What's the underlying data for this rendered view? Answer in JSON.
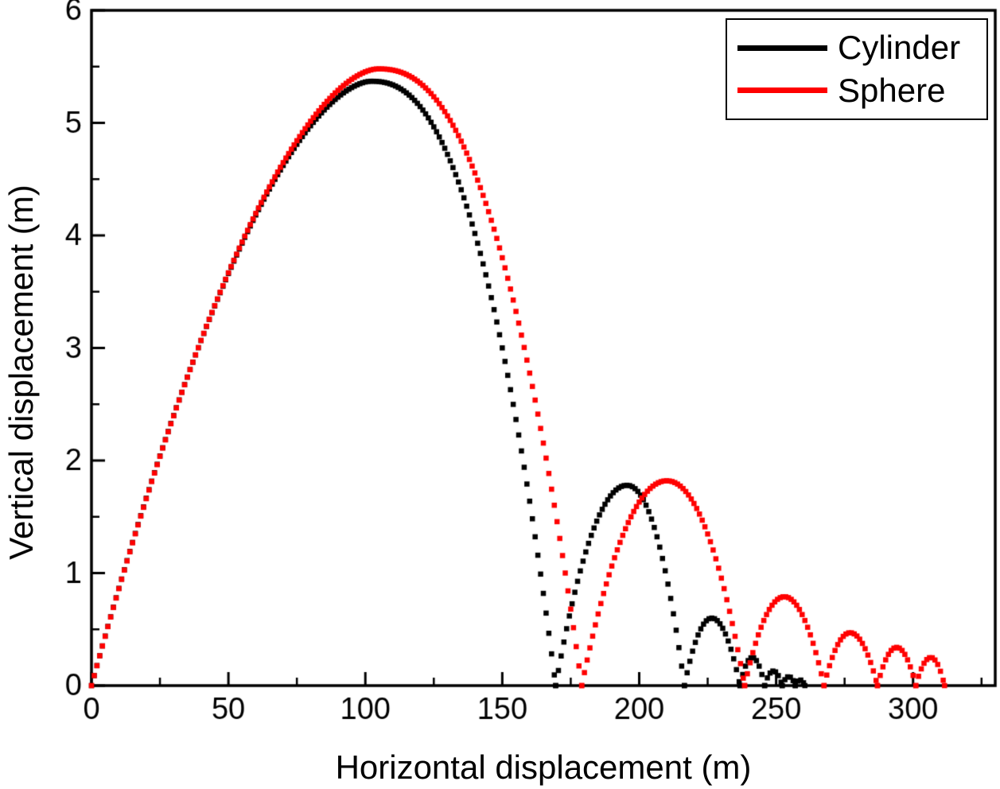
{
  "chart_data": {
    "type": "line",
    "title": "",
    "xlabel": "Horizontal displacement (m)",
    "ylabel": "Vertical displacement (m)",
    "xlim": [
      0,
      330
    ],
    "ylim": [
      0,
      6
    ],
    "x_major_ticks": [
      0,
      50,
      100,
      150,
      200,
      250,
      300
    ],
    "x_minor_step": 25,
    "y_major_ticks": [
      0,
      1,
      2,
      3,
      4,
      5,
      6
    ],
    "y_minor_step": 0.5,
    "grid": false,
    "legend_position": "top-right",
    "axis_color": "#000000",
    "background": "#ffffff",
    "tick_direction": "in",
    "marker": "square-dot",
    "marker_size_px": 6.5,
    "sample_step_m": 1,
    "series": [
      {
        "name": "Cylinder",
        "color": "#000000",
        "bounce_arcs": [
          {
            "x_start": 0,
            "x_peak": 102,
            "x_end": 169.5,
            "peak_height": 5.37,
            "rise_exp": 1.7,
            "fall_exp": 2.4
          },
          {
            "x_start": 169.5,
            "x_peak": 195.5,
            "x_end": 216.5,
            "peak_height": 1.78,
            "rise_exp": 2.0,
            "fall_exp": 2.1
          },
          {
            "x_start": 216.5,
            "x_peak": 226.5,
            "x_end": 236.8,
            "peak_height": 0.6,
            "rise_exp": 2.0,
            "fall_exp": 2.0
          },
          {
            "x_start": 236.8,
            "x_peak": 241.3,
            "x_end": 245.8,
            "peak_height": 0.25,
            "rise_exp": 2.0,
            "fall_exp": 2.0
          },
          {
            "x_start": 245.8,
            "x_peak": 249.0,
            "x_end": 252.2,
            "peak_height": 0.13,
            "rise_exp": 2.0,
            "fall_exp": 2.0
          },
          {
            "x_start": 252.2,
            "x_peak": 254.6,
            "x_end": 257.0,
            "peak_height": 0.08,
            "rise_exp": 2.0,
            "fall_exp": 2.0
          },
          {
            "x_start": 257.0,
            "x_peak": 258.8,
            "x_end": 260.5,
            "peak_height": 0.05,
            "rise_exp": 2.0,
            "fall_exp": 2.0
          }
        ]
      },
      {
        "name": "Sphere",
        "color": "#ff0000",
        "bounce_arcs": [
          {
            "x_start": 0,
            "x_peak": 104.5,
            "x_end": 179,
            "peak_height": 5.48,
            "rise_exp": 1.7,
            "fall_exp": 2.4
          },
          {
            "x_start": 179,
            "x_peak": 210,
            "x_end": 238.5,
            "peak_height": 1.82,
            "rise_exp": 2.0,
            "fall_exp": 2.1
          },
          {
            "x_start": 238.5,
            "x_peak": 253,
            "x_end": 267.5,
            "peak_height": 0.79,
            "rise_exp": 2.0,
            "fall_exp": 2.0
          },
          {
            "x_start": 267.5,
            "x_peak": 277,
            "x_end": 287,
            "peak_height": 0.47,
            "rise_exp": 2.0,
            "fall_exp": 2.0
          },
          {
            "x_start": 287,
            "x_peak": 294,
            "x_end": 301,
            "peak_height": 0.34,
            "rise_exp": 2.0,
            "fall_exp": 2.0
          },
          {
            "x_start": 301,
            "x_peak": 306.5,
            "x_end": 311.5,
            "peak_height": 0.25,
            "rise_exp": 2.0,
            "fall_exp": 2.0
          }
        ]
      }
    ]
  },
  "legend": {
    "items": [
      {
        "label": "Cylinder",
        "color": "#000000"
      },
      {
        "label": "Sphere",
        "color": "#ff0000"
      }
    ]
  }
}
